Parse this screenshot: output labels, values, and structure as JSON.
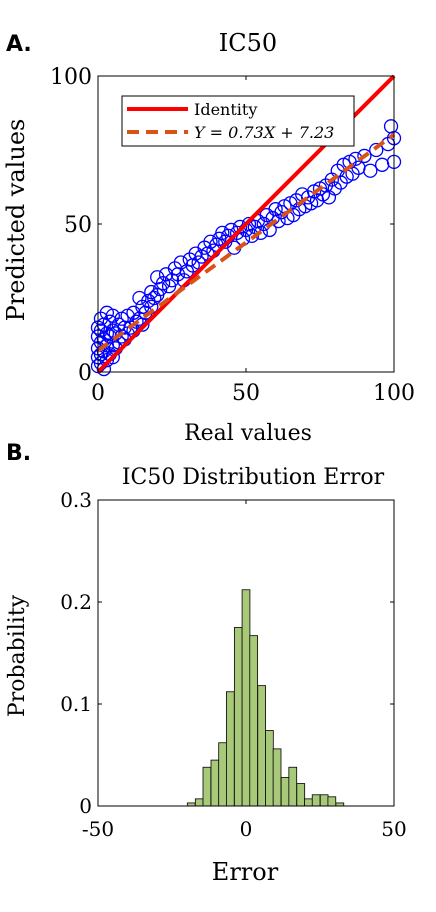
{
  "colors": {
    "identity": "#ff0000",
    "fit": "#d95319",
    "points": "#0000ff",
    "bars_fill": "#a9c97a",
    "bars_edge": "#000000"
  },
  "chart_data": [
    {
      "panel_label": "A.",
      "type": "scatter",
      "title": "IC50",
      "xlabel": "Real values",
      "ylabel": "Predicted values",
      "xlim": [
        0,
        100
      ],
      "ylim": [
        0,
        100
      ],
      "xticks": [
        "0",
        "50",
        "100"
      ],
      "yticks": [
        "0",
        "50",
        "100"
      ],
      "legend_position": "top-left",
      "grid": false,
      "series": [
        {
          "name": "Identity",
          "kind": "line",
          "slope": 1,
          "intercept": 0
        },
        {
          "name": "Y = 0.73X + 7.23",
          "kind": "dashed-line",
          "slope": 0.73,
          "intercept": 7.23
        }
      ],
      "points": [
        [
          0,
          5
        ],
        [
          0,
          8
        ],
        [
          0,
          12
        ],
        [
          0,
          15
        ],
        [
          0,
          2
        ],
        [
          1,
          3
        ],
        [
          1,
          6
        ],
        [
          1,
          10
        ],
        [
          1,
          14
        ],
        [
          1,
          18
        ],
        [
          2,
          1
        ],
        [
          2,
          7
        ],
        [
          2,
          11
        ],
        [
          2,
          16
        ],
        [
          3,
          4
        ],
        [
          3,
          9
        ],
        [
          3,
          13
        ],
        [
          3,
          20
        ],
        [
          4,
          6
        ],
        [
          4,
          12
        ],
        [
          4,
          17
        ],
        [
          5,
          5
        ],
        [
          5,
          9
        ],
        [
          5,
          14
        ],
        [
          5,
          19
        ],
        [
          6,
          8
        ],
        [
          6,
          13
        ],
        [
          7,
          10
        ],
        [
          7,
          16
        ],
        [
          8,
          12
        ],
        [
          8,
          18
        ],
        [
          9,
          11
        ],
        [
          9,
          15
        ],
        [
          10,
          13
        ],
        [
          10,
          19
        ],
        [
          11,
          15
        ],
        [
          12,
          14
        ],
        [
          12,
          20
        ],
        [
          13,
          17
        ],
        [
          14,
          18
        ],
        [
          14,
          25
        ],
        [
          15,
          16
        ],
        [
          15,
          22
        ],
        [
          16,
          20
        ],
        [
          17,
          24
        ],
        [
          18,
          22
        ],
        [
          18,
          27
        ],
        [
          19,
          25
        ],
        [
          20,
          26
        ],
        [
          20,
          32
        ],
        [
          21,
          28
        ],
        [
          22,
          30
        ],
        [
          23,
          33
        ],
        [
          24,
          29
        ],
        [
          25,
          31
        ],
        [
          26,
          35
        ],
        [
          27,
          33
        ],
        [
          28,
          37
        ],
        [
          29,
          31
        ],
        [
          30,
          34
        ],
        [
          31,
          38
        ],
        [
          32,
          36
        ],
        [
          33,
          40
        ],
        [
          34,
          37
        ],
        [
          35,
          39
        ],
        [
          36,
          42
        ],
        [
          37,
          40
        ],
        [
          38,
          44
        ],
        [
          39,
          41
        ],
        [
          40,
          43
        ],
        [
          41,
          45
        ],
        [
          42,
          47
        ],
        [
          43,
          44
        ],
        [
          44,
          46
        ],
        [
          45,
          48
        ],
        [
          46,
          42
        ],
        [
          47,
          47
        ],
        [
          48,
          49
        ],
        [
          49,
          45
        ],
        [
          50,
          48
        ],
        [
          51,
          50
        ],
        [
          52,
          46
        ],
        [
          53,
          49
        ],
        [
          54,
          51
        ],
        [
          55,
          47
        ],
        [
          56,
          50
        ],
        [
          57,
          53
        ],
        [
          58,
          48
        ],
        [
          59,
          52
        ],
        [
          60,
          55
        ],
        [
          61,
          51
        ],
        [
          62,
          54
        ],
        [
          63,
          56
        ],
        [
          64,
          52
        ],
        [
          65,
          57
        ],
        [
          66,
          53
        ],
        [
          67,
          58
        ],
        [
          68,
          55
        ],
        [
          69,
          60
        ],
        [
          70,
          56
        ],
        [
          71,
          59
        ],
        [
          72,
          57
        ],
        [
          73,
          61
        ],
        [
          74,
          58
        ],
        [
          75,
          62
        ],
        [
          76,
          60
        ],
        [
          77,
          63
        ],
        [
          78,
          59
        ],
        [
          79,
          65
        ],
        [
          80,
          62
        ],
        [
          81,
          68
        ],
        [
          82,
          64
        ],
        [
          83,
          70
        ],
        [
          84,
          66
        ],
        [
          85,
          71
        ],
        [
          86,
          67
        ],
        [
          87,
          72
        ],
        [
          88,
          69
        ],
        [
          90,
          73
        ],
        [
          92,
          68
        ],
        [
          94,
          75
        ],
        [
          96,
          70
        ],
        [
          98,
          77
        ],
        [
          99,
          83
        ],
        [
          100,
          71
        ],
        [
          100,
          79
        ]
      ]
    },
    {
      "panel_label": "B.",
      "type": "bar",
      "title": "IC50 Distribution Error",
      "xlabel": "Error",
      "ylabel": "Probability",
      "xlim": [
        -50,
        50
      ],
      "ylim": [
        0,
        0.3
      ],
      "xticks": [
        "-50",
        "0",
        "50"
      ],
      "yticks": [
        "0",
        "0.1",
        "0.2",
        "0.3"
      ],
      "grid": false,
      "bin_width": 2.65,
      "bins": [
        {
          "x": -18.5,
          "value": 0.003
        },
        {
          "x": -15.8,
          "value": 0.007
        },
        {
          "x": -13.2,
          "value": 0.038
        },
        {
          "x": -10.5,
          "value": 0.045
        },
        {
          "x": -7.9,
          "value": 0.062
        },
        {
          "x": -5.3,
          "value": 0.112
        },
        {
          "x": -2.6,
          "value": 0.175
        },
        {
          "x": 0.0,
          "value": 0.212
        },
        {
          "x": 2.6,
          "value": 0.167
        },
        {
          "x": 5.3,
          "value": 0.118
        },
        {
          "x": 7.9,
          "value": 0.074
        },
        {
          "x": 10.5,
          "value": 0.056
        },
        {
          "x": 13.2,
          "value": 0.028
        },
        {
          "x": 15.8,
          "value": 0.038
        },
        {
          "x": 18.5,
          "value": 0.022
        },
        {
          "x": 21.1,
          "value": 0.007
        },
        {
          "x": 23.7,
          "value": 0.011
        },
        {
          "x": 26.4,
          "value": 0.011
        },
        {
          "x": 29.0,
          "value": 0.009
        },
        {
          "x": 31.7,
          "value": 0.003
        }
      ]
    }
  ]
}
